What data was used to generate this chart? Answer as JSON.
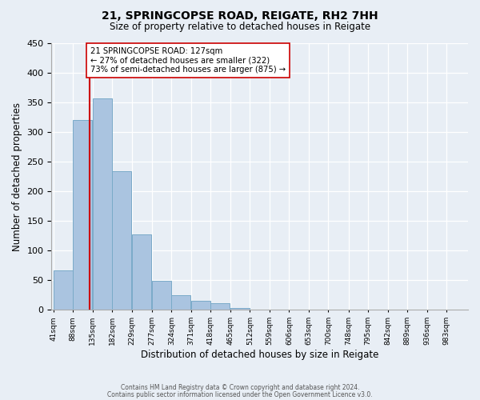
{
  "title1": "21, SPRINGCOPSE ROAD, REIGATE, RH2 7HH",
  "title2": "Size of property relative to detached houses in Reigate",
  "xlabel": "Distribution of detached houses by size in Reigate",
  "ylabel": "Number of detached properties",
  "bar_values": [
    67,
    320,
    357,
    234,
    127,
    49,
    25,
    15,
    11,
    3,
    0,
    1,
    0,
    0,
    0,
    0,
    0,
    1,
    0,
    1
  ],
  "bin_labels": [
    "41sqm",
    "88sqm",
    "135sqm",
    "182sqm",
    "229sqm",
    "277sqm",
    "324sqm",
    "371sqm",
    "418sqm",
    "465sqm",
    "512sqm",
    "559sqm",
    "606sqm",
    "653sqm",
    "700sqm",
    "748sqm",
    "795sqm",
    "842sqm",
    "889sqm",
    "936sqm",
    "983sqm"
  ],
  "bin_edges": [
    41,
    88,
    135,
    182,
    229,
    277,
    324,
    371,
    418,
    465,
    512,
    559,
    606,
    653,
    700,
    748,
    795,
    842,
    889,
    936,
    983
  ],
  "bar_color": "#aac4e0",
  "bar_edge_color": "#7aaac8",
  "property_line_x": 127,
  "property_line_label": "21 SPRINGCOPSE ROAD: 127sqm",
  "annotation_line1": "← 27% of detached houses are smaller (322)",
  "annotation_line2": "73% of semi-detached houses are larger (875) →",
  "line_color": "#cc0000",
  "annotation_box_color": "#ffffff",
  "annotation_box_edge": "#cc0000",
  "ylim": [
    0,
    450
  ],
  "footer1": "Contains HM Land Registry data © Crown copyright and database right 2024.",
  "footer2": "Contains public sector information licensed under the Open Government Licence v3.0.",
  "bg_color": "#e8eef5",
  "plot_bg_color": "#e8eef5"
}
